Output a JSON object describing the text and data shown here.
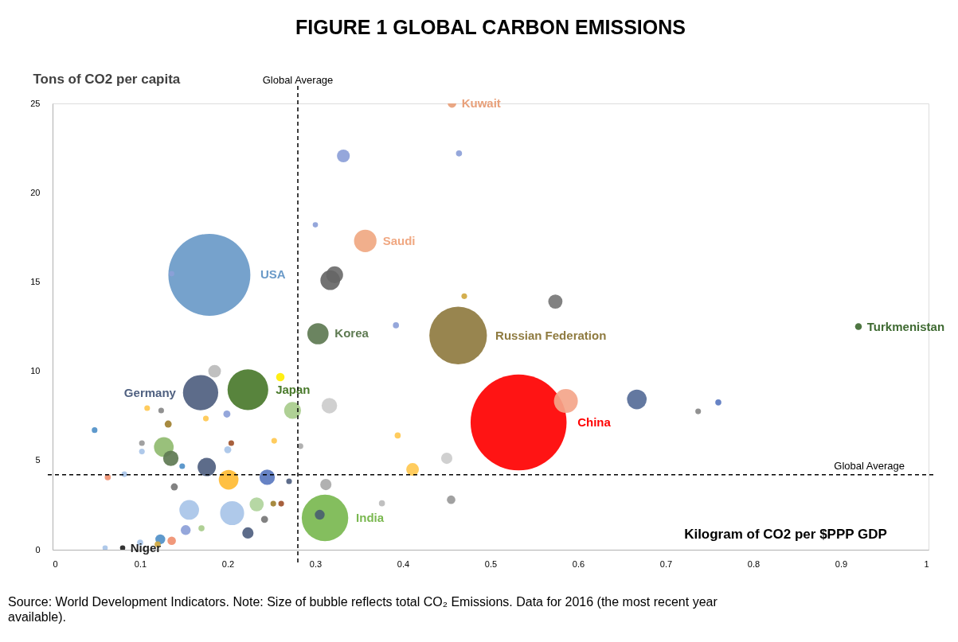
{
  "chart_data": {
    "type": "bubble",
    "title": "FIGURE 1     GLOBAL CARBON EMISSIONS",
    "xlabel": "Kilogram of CO2 per $PPP GDP",
    "ylabel": "Tons of CO2 per capita",
    "xlim": [
      0,
      1
    ],
    "ylim": [
      0,
      25
    ],
    "xticks": [
      0,
      0.1,
      0.2,
      0.3,
      0.4,
      0.5,
      0.6,
      0.7,
      0.8,
      0.9,
      1
    ],
    "yticks": [
      0,
      5,
      10,
      15,
      20,
      25
    ],
    "grid": false,
    "ref_lines": [
      {
        "axis": "x",
        "value": 0.28,
        "label": "Global Average",
        "line_style": "dashed",
        "color": "#000000"
      },
      {
        "axis": "y",
        "value": 4.2,
        "label": "Global Average",
        "line_style": "dashed",
        "color": "#000000"
      }
    ],
    "annotations": [
      "Source: World Development Indicators.  Note: Size of bubble reflects total CO₂ Emissions. Data for 2016 (the most recent year available)."
    ],
    "series": [
      {
        "name": "USA",
        "color": "#6a9ac8",
        "x": [
          0.179
        ],
        "values": [
          15.4
        ],
        "sizes": [
          0.73
        ]
      },
      {
        "name": "China",
        "color": "#ff0000",
        "x": [
          0.532
        ],
        "values": [
          7.13
        ],
        "sizes": [
          1
        ]
      },
      {
        "name": "Russian Federation",
        "color": "#8f7b40",
        "x": [
          0.463
        ],
        "values": [
          12.0
        ],
        "sizes": [
          0.36
        ]
      },
      {
        "name": "Japan",
        "color": "#4a7a2c",
        "x": [
          0.223
        ],
        "values": [
          8.96
        ],
        "sizes": [
          0.18
        ]
      },
      {
        "name": "Germany",
        "color": "#4f6080",
        "x": [
          0.169
        ],
        "values": [
          8.8
        ],
        "sizes": [
          0.135
        ]
      },
      {
        "name": "India",
        "color": "#7ab850",
        "x": [
          0.311
        ],
        "values": [
          1.78
        ],
        "sizes": [
          0.235
        ]
      },
      {
        "name": "Korea",
        "color": "#5e7a52",
        "x": [
          0.303
        ],
        "values": [
          12.1
        ],
        "sizes": [
          0.049
        ]
      },
      {
        "name": "Saudi",
        "color": "#f0a882",
        "x": [
          0.357
        ],
        "values": [
          17.3
        ],
        "sizes": [
          0.055
        ]
      },
      {
        "name": "Kuwait",
        "color": "#e8a07a",
        "x": [
          0.456
        ],
        "values": [
          25.0
        ],
        "sizes": [
          0.008
        ]
      },
      {
        "name": "Turkmenistan",
        "color": "#3f6a32",
        "x": [
          0.92
        ],
        "values": [
          12.5
        ],
        "sizes": [
          0.005
        ]
      },
      {
        "name": "Niger",
        "color": "#222222",
        "x": [
          0.08
        ],
        "values": [
          0.1
        ],
        "sizes": [
          0.003
        ]
      },
      {
        "x": [
          0.322,
          0.317,
          0.332,
          0.464,
          0.47,
          0.574,
          0.586,
          0.667,
          0.737,
          0.76,
          0.185,
          0.26,
          0.274,
          0.316,
          0.201,
          0.245,
          0.176,
          0.127,
          0.135,
          0.205,
          0.156,
          0.233,
          0.312,
          0.305,
          0.411,
          0.45,
          0.455,
          0.223,
          0.152,
          0.136,
          0.123,
          0.139,
          0.132,
          0.253,
          0.394,
          0.048,
          0.108,
          0.124,
          0.102,
          0.102,
          0.082,
          0.063,
          0.148,
          0.204,
          0.2,
          0.199,
          0.175,
          0.283,
          0.27,
          0.252,
          0.261,
          0.242,
          0.392,
          0.3,
          0.136,
          0.376,
          0.1,
          0.17,
          0.06,
          0.12
        ],
        "values": [
          15.4,
          15.1,
          22.06,
          22.2,
          14.2,
          13.9,
          8.33,
          8.42,
          7.75,
          8.25,
          10.0,
          9.67,
          7.8,
          8.07,
          3.92,
          4.06,
          4.63,
          5.75,
          5.12,
          2.05,
          2.23,
          2.54,
          3.65,
          1.96,
          4.5,
          5.12,
          2.8,
          0.94,
          1.1,
          0.5,
          0.58,
          3.52,
          7.04,
          6.1,
          6.4,
          6.7,
          7.93,
          7.8,
          5.97,
          5.5,
          4.23,
          4.06,
          4.68,
          5.97,
          5.6,
          7.6,
          7.35,
          5.8,
          3.83,
          2.58,
          2.58,
          1.7,
          12.57,
          18.2,
          15.46,
          2.6,
          0.4,
          1.2,
          0.1,
          0.3
        ],
        "sizes": [
          0.031,
          0.042,
          0.018,
          0.004,
          0.0035,
          0.022,
          0.062,
          0.042,
          0.0035,
          0.004,
          0.0175,
          0.0078,
          0.031,
          0.026,
          0.042,
          0.026,
          0.0365,
          0.042,
          0.026,
          0.0625,
          0.042,
          0.0216,
          0.0138,
          0.0106,
          0.0175,
          0.0138,
          0.0078,
          0.0138,
          0.0106,
          0.0078,
          0.0106,
          0.0054,
          0.0054,
          0.0035,
          0.004,
          0.0035,
          0.0035,
          0.0035,
          0.0035,
          0.0035,
          0.0035,
          0.004,
          0.0035,
          0.0035,
          0.0054,
          0.0054,
          0.0035,
          0.0035,
          0.0035,
          0.0035,
          0.0035,
          0.0054,
          0.004,
          0.003,
          0.003,
          0.004,
          0.004,
          0.004,
          0.003,
          0.004
        ],
        "colors": [
          "#6d6d6d",
          "#666666",
          "#8ca0d8",
          "#8ca0d8",
          "#d0a840",
          "#777777",
          "#f4a58a",
          "#566c98",
          "#888888",
          "#5a78c0",
          "#bbbbbb",
          "#ffee00",
          "#a8cc8c",
          "#cccccc",
          "#ffbb33",
          "#5a78c0",
          "#4f6080",
          "#90bb70",
          "#5e7a52",
          "#a8c4e8",
          "#a8c4e8",
          "#b0d49c",
          "#aaaaaa",
          "#4a6070",
          "#ffc850",
          "#cccccc",
          "#999999",
          "#4f6080",
          "#8ca0d8",
          "#f09070",
          "#5090c8",
          "#777777",
          "#a08030",
          "#ffc850",
          "#ffc850",
          "#5090c8",
          "#ffc850",
          "#888888",
          "#999999",
          "#a8c4e8",
          "#a8c4e8",
          "#f09070",
          "#5090c8",
          "#a0522d",
          "#a8c4e8",
          "#8ca0d8",
          "#ffc850",
          "#aaaaaa",
          "#4f6080",
          "#a08030",
          "#a0522d",
          "#777777",
          "#8ca0d8",
          "#8ca0d8",
          "#8ca0d8",
          "#bbbbbb",
          "#a8c4e8",
          "#a8cc8c",
          "#a8c4e8",
          "#d0a840"
        ]
      }
    ]
  }
}
